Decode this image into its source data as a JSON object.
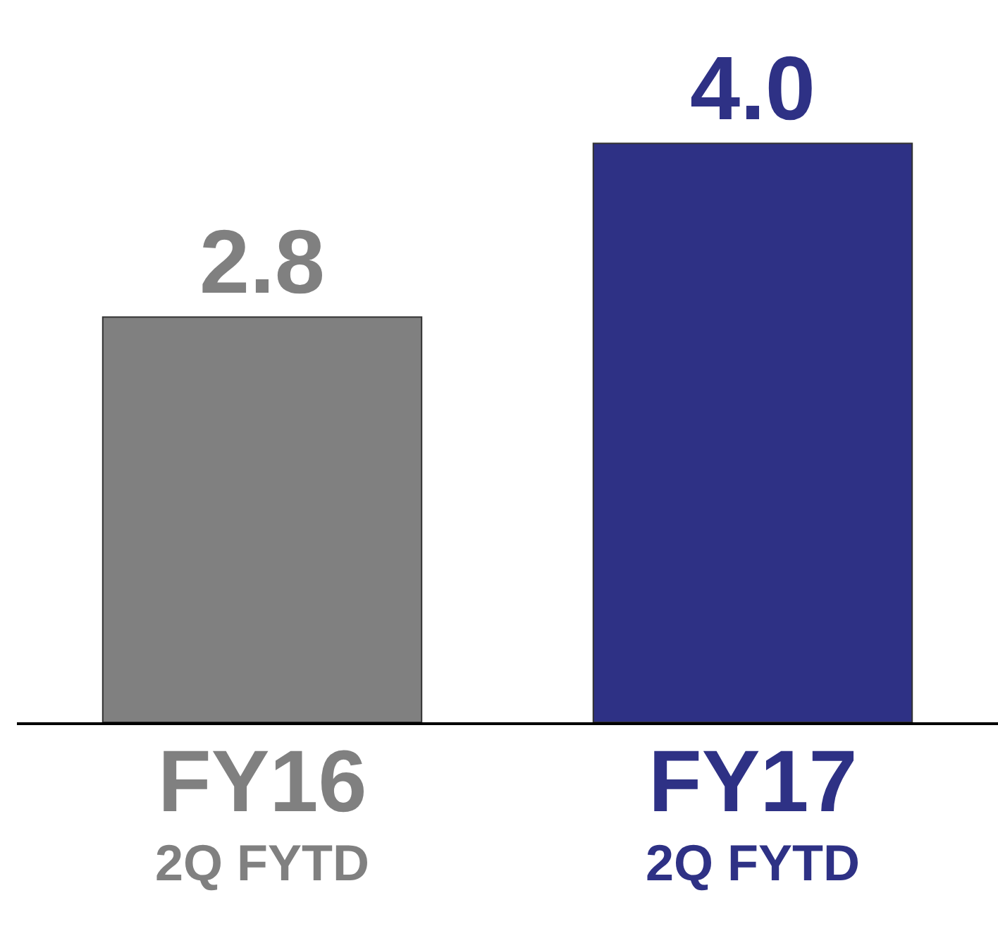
{
  "chart_data": {
    "type": "bar",
    "categories": [
      "FY16\n2Q FYTD",
      "FY17\n2Q FYTD"
    ],
    "values": [
      2.8,
      4.0
    ],
    "value_labels": [
      "2.8",
      "4.0"
    ],
    "colors": [
      "#808080",
      "#2e3185"
    ]
  }
}
